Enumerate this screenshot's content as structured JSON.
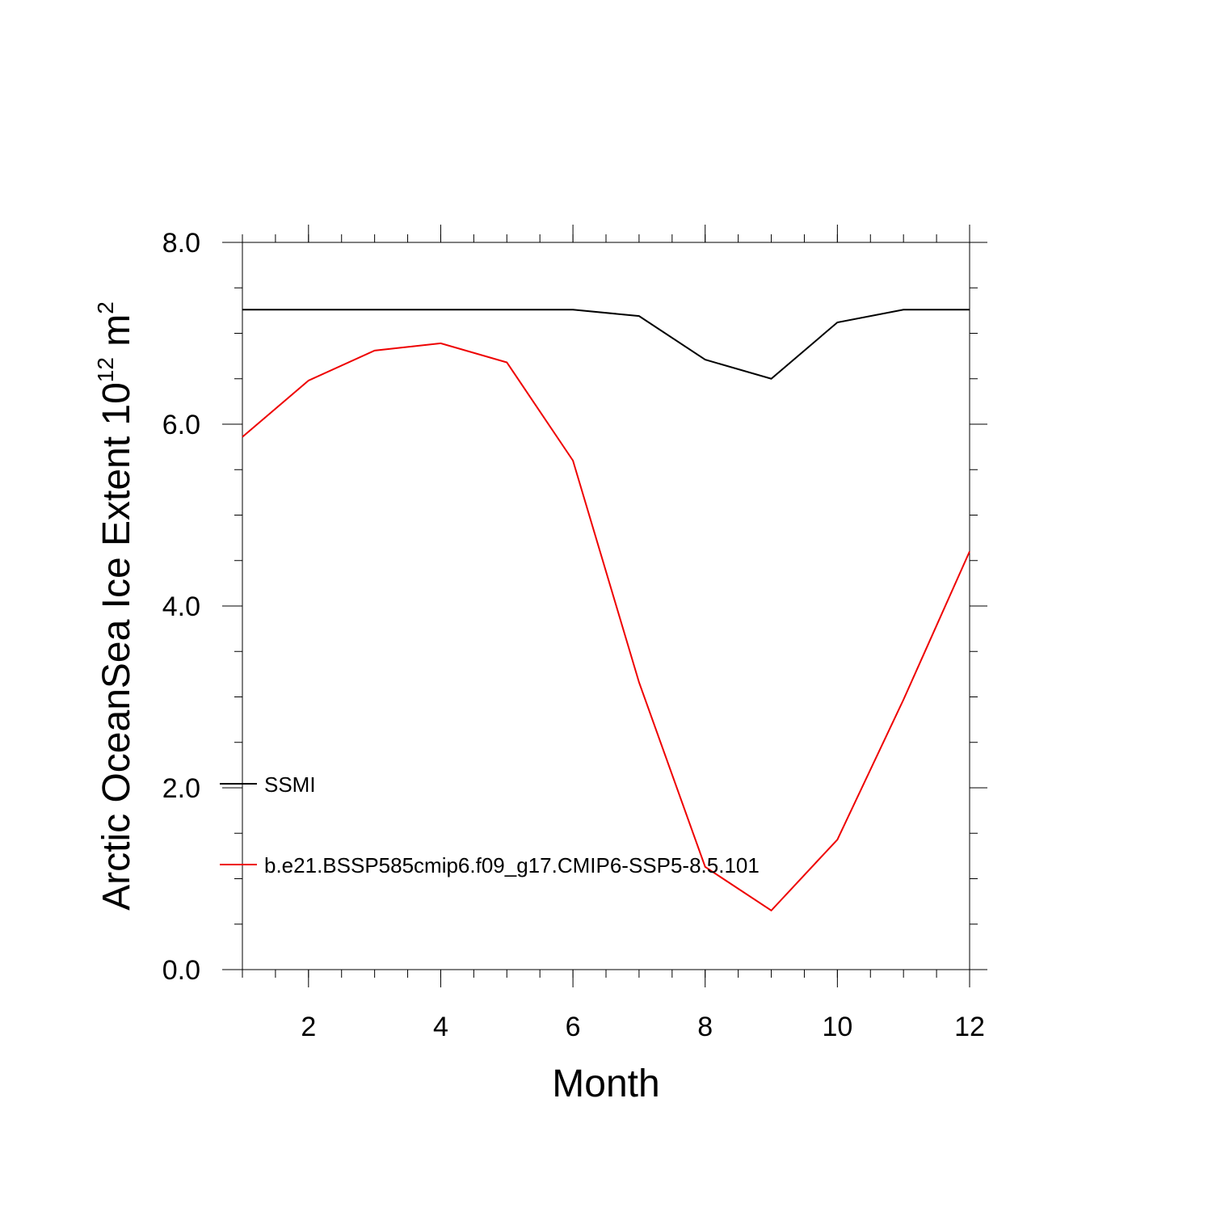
{
  "chart_data": {
    "type": "line",
    "title": "",
    "xlabel": "Month",
    "ylabel": {
      "text": "Arctic OceanSea Ice Extent 10",
      "sup1": "12",
      "unit": " m",
      "sup2": "2"
    },
    "xlim": [
      1,
      12
    ],
    "ylim": [
      0,
      8
    ],
    "xticks": [
      2,
      4,
      6,
      8,
      10,
      12
    ],
    "xtick_labels": [
      "2",
      "4",
      "6",
      "8",
      "10",
      "12"
    ],
    "yticks": [
      0,
      2,
      4,
      6,
      8
    ],
    "ytick_labels": [
      "0.0",
      "2.0",
      "4.0",
      "6.0",
      "8.0"
    ],
    "grid": false,
    "legend_position": "left",
    "x": [
      1,
      2,
      3,
      4,
      5,
      6,
      7,
      8,
      9,
      10,
      11,
      12
    ],
    "series": [
      {
        "name": "SSMI",
        "color": "#000000",
        "values": [
          7.26,
          7.26,
          7.26,
          7.26,
          7.26,
          7.26,
          7.19,
          6.71,
          6.5,
          7.12,
          7.26,
          7.26
        ]
      },
      {
        "name": "b.e21.BSSP585cmip6.f09_g17.CMIP6-SSP5-8.5.101",
        "color": "#ee0000",
        "values": [
          5.86,
          6.48,
          6.81,
          6.89,
          6.68,
          5.6,
          3.16,
          1.13,
          0.65,
          1.43,
          2.97,
          4.6
        ]
      }
    ]
  }
}
